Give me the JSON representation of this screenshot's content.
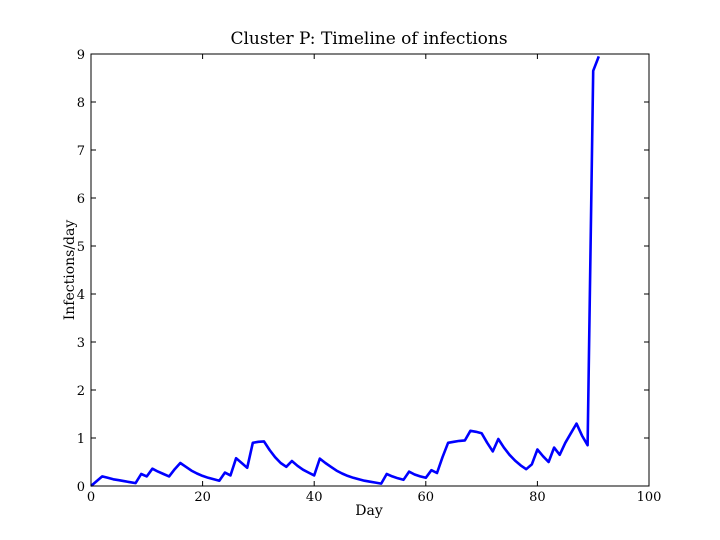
{
  "chart_data": {
    "type": "line",
    "title": "Cluster P: Timeline of infections",
    "xlabel": "Day",
    "ylabel": "Infections/day",
    "xlim": [
      0,
      100
    ],
    "ylim": [
      0,
      9
    ],
    "xticks": [
      0,
      20,
      40,
      60,
      80,
      100
    ],
    "yticks": [
      0,
      1,
      2,
      3,
      4,
      5,
      6,
      7,
      8,
      9
    ],
    "grid": false,
    "series": [
      {
        "color": "#0000ff",
        "x": [
          0,
          2,
          3,
          4,
          5,
          6,
          7,
          8,
          9,
          10,
          11,
          12,
          13,
          14,
          15,
          16,
          17,
          18,
          19,
          20,
          21,
          22,
          23,
          24,
          25,
          26,
          27,
          28,
          29,
          30,
          31,
          32,
          33,
          34,
          35,
          36,
          37,
          38,
          39,
          40,
          41,
          42,
          43,
          44,
          45,
          46,
          47,
          48,
          49,
          50,
          51,
          52,
          53,
          54,
          55,
          56,
          57,
          58,
          59,
          60,
          61,
          62,
          63,
          64,
          65,
          66,
          67,
          68,
          69,
          70,
          71,
          72,
          73,
          74,
          75,
          76,
          77,
          78,
          79,
          80,
          81,
          82,
          83,
          84,
          85,
          86,
          87,
          88,
          89,
          90,
          91
        ],
        "values": [
          0,
          0.2,
          0.17,
          0.14,
          0.12,
          0.1,
          0.08,
          0.06,
          0.25,
          0.2,
          0.36,
          0.3,
          0.25,
          0.2,
          0.35,
          0.48,
          0.4,
          0.32,
          0.26,
          0.21,
          0.17,
          0.14,
          0.11,
          0.28,
          0.22,
          0.58,
          0.48,
          0.38,
          0.9,
          0.92,
          0.93,
          0.75,
          0.6,
          0.48,
          0.4,
          0.52,
          0.42,
          0.34,
          0.28,
          0.22,
          0.57,
          0.48,
          0.4,
          0.32,
          0.26,
          0.21,
          0.17,
          0.14,
          0.11,
          0.09,
          0.07,
          0.05,
          0.25,
          0.2,
          0.16,
          0.13,
          0.3,
          0.24,
          0.2,
          0.17,
          0.33,
          0.27,
          0.6,
          0.9,
          0.92,
          0.94,
          0.95,
          1.15,
          1.13,
          1.1,
          0.9,
          0.72,
          0.98,
          0.8,
          0.65,
          0.53,
          0.43,
          0.35,
          0.45,
          0.76,
          0.62,
          0.5,
          0.8,
          0.65,
          0.9,
          1.1,
          1.3,
          1.05,
          0.85,
          8.65,
          8.95
        ]
      }
    ]
  }
}
